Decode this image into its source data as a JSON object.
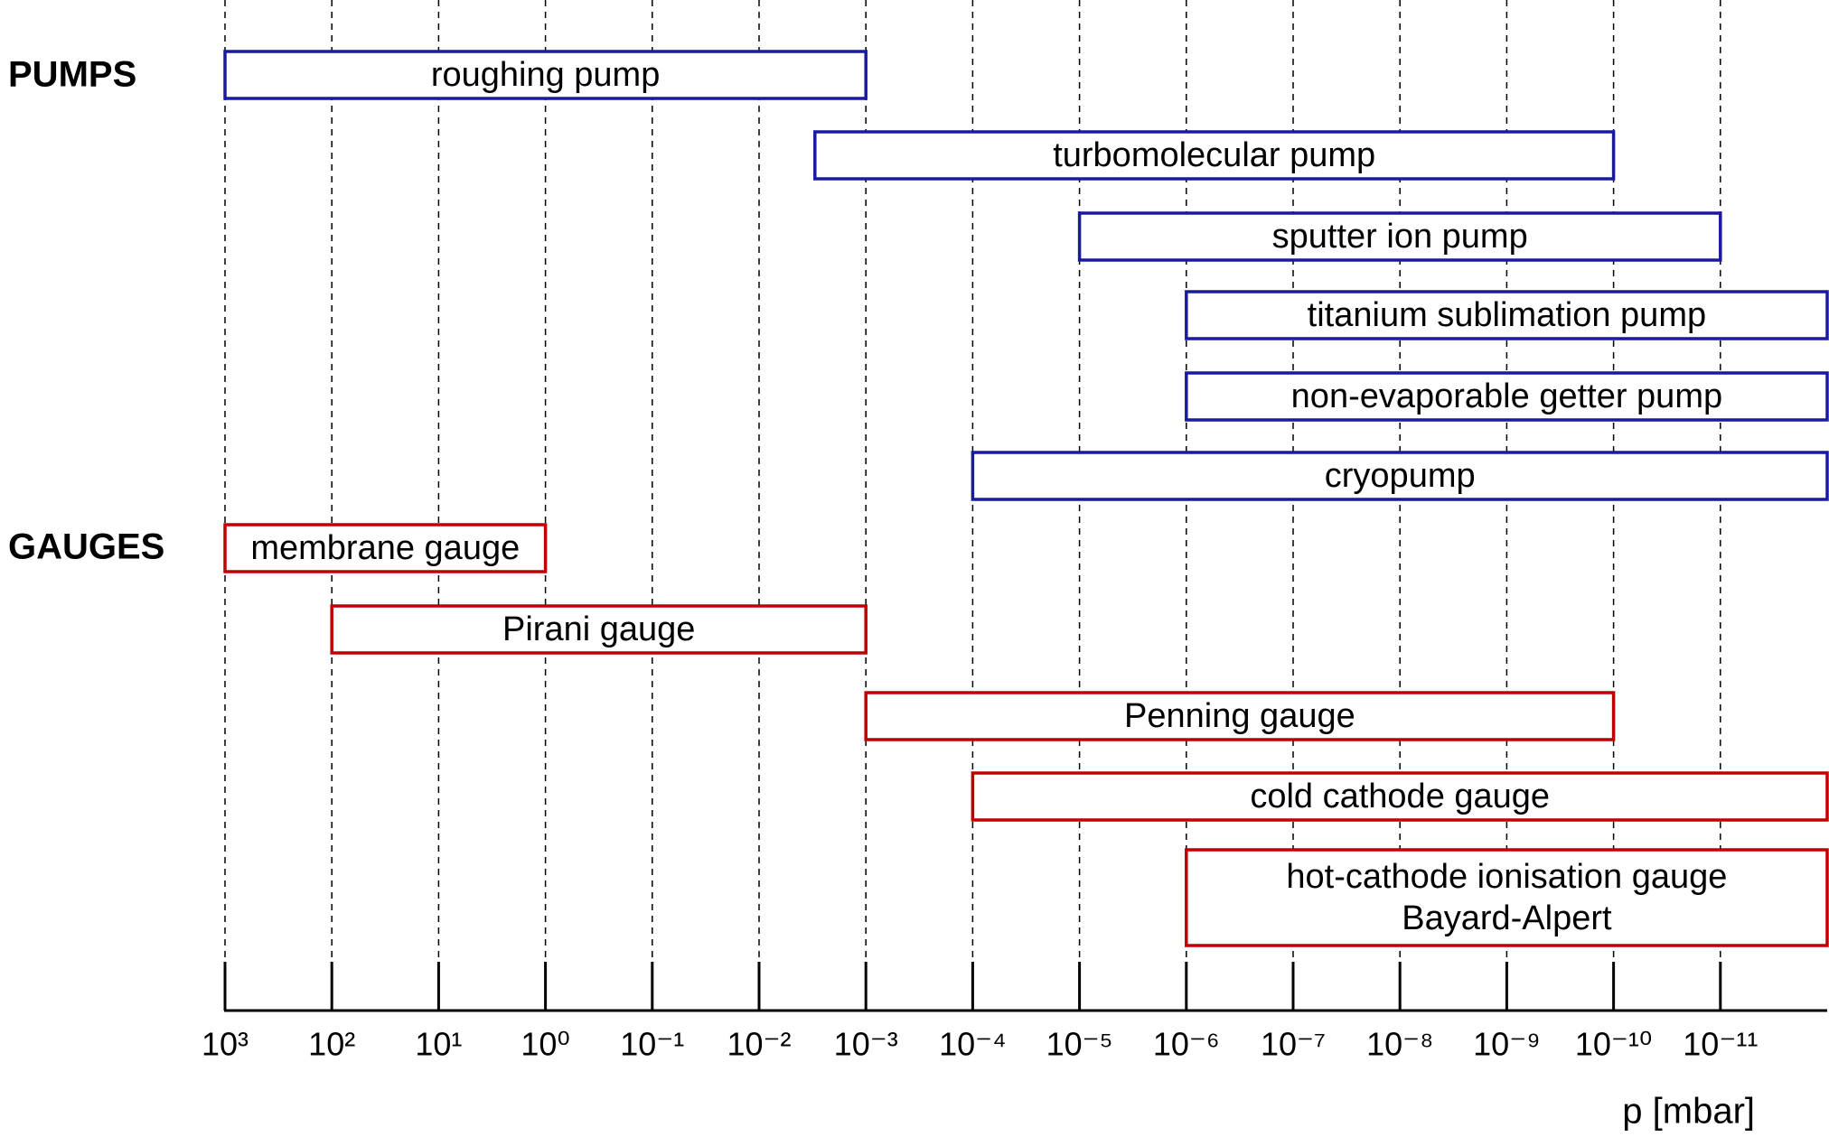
{
  "chart_data": {
    "type": "range_bar",
    "xlabel": "p [mbar]",
    "xscale": "log",
    "grid": true,
    "xlim": [
      1000,
      1e-12
    ],
    "xticks": [
      {
        "value": 1000,
        "label": "10³"
      },
      {
        "value": 100,
        "label": "10²"
      },
      {
        "value": 10,
        "label": "10¹"
      },
      {
        "value": 1,
        "label": "10⁰"
      },
      {
        "value": 0.1,
        "label": "10⁻¹"
      },
      {
        "value": 0.01,
        "label": "10⁻²"
      },
      {
        "value": 0.001,
        "label": "10⁻³"
      },
      {
        "value": 0.0001,
        "label": "10⁻⁴"
      },
      {
        "value": 1e-05,
        "label": "10⁻⁵"
      },
      {
        "value": 1e-06,
        "label": "10⁻⁶"
      },
      {
        "value": 1e-07,
        "label": "10⁻⁷"
      },
      {
        "value": 1e-08,
        "label": "10⁻⁸"
      },
      {
        "value": 1e-09,
        "label": "10⁻⁹"
      },
      {
        "value": 1e-10,
        "label": "10⁻¹⁰"
      },
      {
        "value": 1e-11,
        "label": "10⁻¹¹"
      }
    ],
    "series": [
      {
        "name": "PUMPS",
        "color": "#1a1aa0",
        "bars": [
          {
            "label": [
              "roughing pump"
            ],
            "range": [
              1000,
              0.001
            ]
          },
          {
            "label": [
              "turbomolecular pump"
            ],
            "range": [
              0.003,
              1e-10
            ]
          },
          {
            "label": [
              "sputter ion pump"
            ],
            "range": [
              1e-05,
              1e-11
            ]
          },
          {
            "label": [
              "titanium sublimation pump"
            ],
            "range": [
              1e-06,
              1e-12
            ]
          },
          {
            "label": [
              "non-evaporable getter pump"
            ],
            "range": [
              1e-06,
              1e-12
            ]
          },
          {
            "label": [
              "cryopump"
            ],
            "range": [
              0.0001,
              1e-12
            ]
          }
        ]
      },
      {
        "name": "GAUGES",
        "color": "#c00000",
        "bars": [
          {
            "label": [
              "membrane gauge"
            ],
            "range": [
              1000,
              1
            ]
          },
          {
            "label": [
              "Pirani gauge"
            ],
            "range": [
              100,
              0.001
            ]
          },
          {
            "label": [
              "Penning gauge"
            ],
            "range": [
              0.001,
              1e-10
            ]
          },
          {
            "label": [
              "cold cathode gauge"
            ],
            "range": [
              0.0001,
              1e-12
            ]
          },
          {
            "label": [
              "hot-cathode ionisation gauge",
              "Bayard-Alpert"
            ],
            "range": [
              1e-06,
              1e-12
            ]
          }
        ]
      }
    ]
  }
}
